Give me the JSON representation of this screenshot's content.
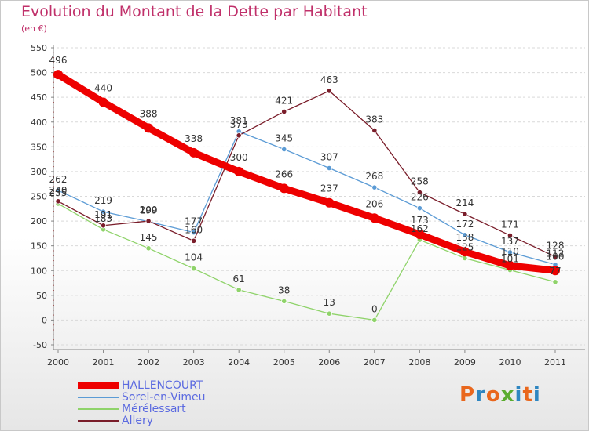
{
  "colors": {
    "title": "#c0306a",
    "legend_text": "#5b6ae0",
    "axis_text": "#333333",
    "grid": "#d9d9d9",
    "value_label": "#333333"
  },
  "chart_data": {
    "type": "line",
    "title": "Evolution du Montant de la Dette par Habitant",
    "subtitle": "(en €)",
    "xlabel": "",
    "ylabel": "",
    "x": [
      "2000",
      "2001",
      "2002",
      "2003",
      "2004",
      "2005",
      "2006",
      "2007",
      "2008",
      "2009",
      "2010",
      "2011"
    ],
    "ylim": [
      -50,
      550
    ],
    "yticks": [
      "-50",
      "0",
      "50",
      "100",
      "150",
      "200",
      "250",
      "300",
      "350",
      "400",
      "450",
      "500",
      "550"
    ],
    "grid": "horizontal dashed",
    "legend_position": "bottom-left",
    "series": [
      {
        "name": "HALLENCOURT",
        "color": "#ee0000",
        "emphasis": true,
        "values": [
          496,
          440,
          388,
          338,
          300,
          266,
          237,
          206,
          173,
          138,
          110,
          100
        ],
        "labels": [
          "496",
          "440",
          "388",
          "338",
          "300",
          "266",
          "237",
          "206",
          "173",
          "138",
          "110",
          "100"
        ]
      },
      {
        "name": "Sorel-en-Vimeu",
        "color": "#5b9bd5",
        "emphasis": false,
        "values": [
          262,
          219,
          199,
          177,
          381,
          345,
          307,
          268,
          226,
          172,
          137,
          112
        ],
        "labels": [
          "262",
          "219",
          "199",
          "177",
          "381",
          "345",
          "307",
          "268",
          "226",
          "172",
          "137",
          "112"
        ]
      },
      {
        "name": "Mérélessart",
        "color": "#8fd36a",
        "emphasis": false,
        "values": [
          235,
          183,
          145,
          104,
          61,
          38,
          13,
          0,
          162,
          125,
          101,
          77
        ],
        "labels": [
          "235",
          "183",
          "145",
          "104",
          "61",
          "38",
          "13",
          "0",
          "162",
          "125",
          "101",
          "77"
        ]
      },
      {
        "name": "Allery",
        "color": "#7a1d2a",
        "emphasis": false,
        "values": [
          240,
          191,
          200,
          160,
          373,
          421,
          463,
          383,
          258,
          214,
          171,
          128
        ],
        "labels": [
          "240",
          "191",
          "200",
          "160",
          "373",
          "421",
          "463",
          "383",
          "258",
          "214",
          "171",
          "128"
        ]
      }
    ]
  },
  "logo": {
    "text": "Proxiti",
    "letter_colors": [
      "#e9671d",
      "#2e86c1",
      "#e9671d",
      "#5aac2f",
      "#2e86c1",
      "#e9671d",
      "#2e86c1"
    ]
  }
}
